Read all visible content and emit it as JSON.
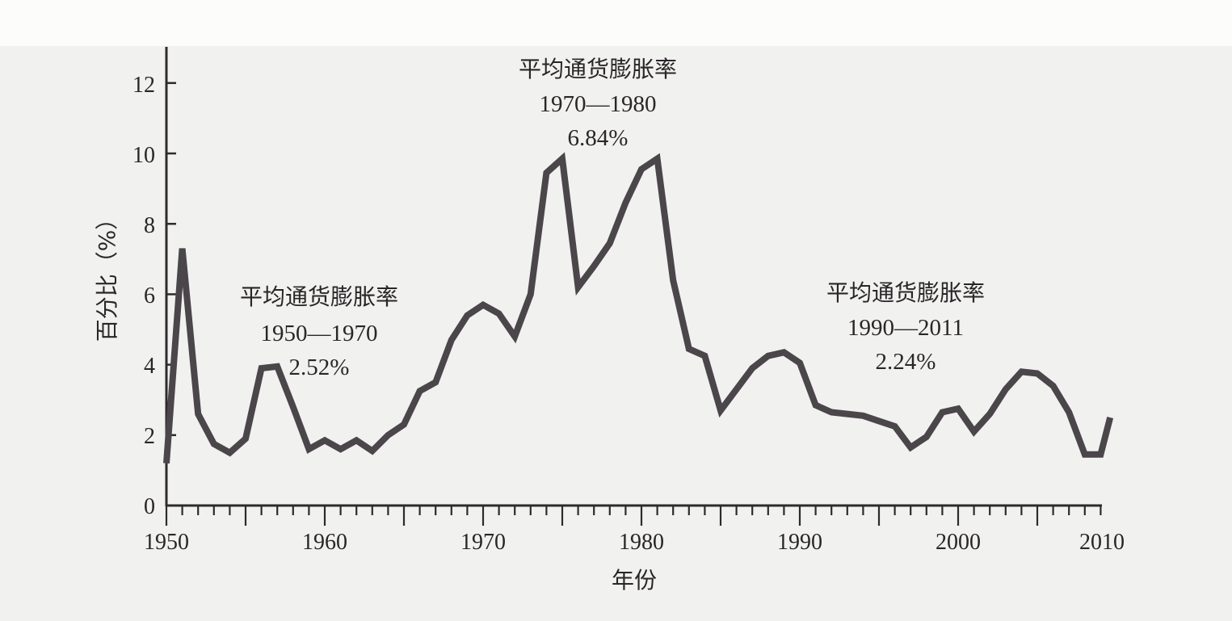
{
  "chart_data": {
    "type": "line",
    "title": "",
    "xlabel": "年份",
    "ylabel": "百分比（%）",
    "xlim": [
      1950,
      2009
    ],
    "ylim": [
      0,
      13
    ],
    "grid": false,
    "x_tick_labels": [
      "1950",
      "1960",
      "1970",
      "1980",
      "1990",
      "2000",
      "2010"
    ],
    "y_tick_labels": [
      "0",
      "2",
      "4",
      "6",
      "8",
      "10",
      "12"
    ],
    "series": [
      {
        "name": "通货膨胀率",
        "color": "#4a464a",
        "x": [
          1950,
          1951,
          1952,
          1953,
          1954,
          1955,
          1956,
          1957,
          1958,
          1959,
          1960,
          1961,
          1962,
          1963,
          1964,
          1965,
          1966,
          1967,
          1968,
          1969,
          1970,
          1971,
          1972,
          1973,
          1974,
          1975,
          1976,
          1977,
          1978,
          1979,
          1980,
          1981,
          1982,
          1983,
          1984,
          1985,
          1986,
          1987,
          1988,
          1989,
          1990,
          1991,
          1992,
          1993,
          1994,
          1995,
          1996,
          1997,
          1998,
          1999,
          2000,
          2001,
          2002,
          2003,
          2004,
          2005,
          2006,
          2007,
          2008,
          2009,
          2009.6
        ],
        "values": [
          1.2,
          7.3,
          2.6,
          1.75,
          1.5,
          1.9,
          3.9,
          3.95,
          2.8,
          1.6,
          1.85,
          1.6,
          1.85,
          1.55,
          2.0,
          2.3,
          3.25,
          3.5,
          4.7,
          5.4,
          5.7,
          5.45,
          4.8,
          6.0,
          9.45,
          9.85,
          6.2,
          6.8,
          7.45,
          8.6,
          9.55,
          9.85,
          6.4,
          4.45,
          4.25,
          2.7,
          3.3,
          3.9,
          4.25,
          4.35,
          4.05,
          2.85,
          2.65,
          2.6,
          2.55,
          2.4,
          2.25,
          1.65,
          1.95,
          2.65,
          2.75,
          2.1,
          2.6,
          3.3,
          3.8,
          3.75,
          3.4,
          2.65,
          1.45,
          1.45,
          2.5
        ]
      }
    ],
    "annotations": [
      {
        "title": "平均通货膨胀率",
        "period": "1950—1970",
        "value": "2.52%"
      },
      {
        "title": "平均通货膨胀率",
        "period": "1970—1980",
        "value": "6.84%"
      },
      {
        "title": "平均通货膨胀率",
        "period": "1990—2011",
        "value": "2.24%"
      }
    ]
  },
  "labels": {
    "xlabel": "年份",
    "ylabel": "百分比（%）",
    "x_ticks": [
      "1950",
      "1960",
      "1970",
      "1980",
      "1990",
      "2000",
      "2010"
    ],
    "y_ticks": [
      "0",
      "2",
      "4",
      "6",
      "8",
      "10",
      "12"
    ],
    "anno1": {
      "title": "平均通货膨胀率",
      "period": "1950—1970",
      "value": "2.52%"
    },
    "anno2": {
      "title": "平均通货膨胀率",
      "period": "1970—1980",
      "value": "6.84%"
    },
    "anno3": {
      "title": "平均通货膨胀率",
      "period": "1990—2011",
      "value": "2.24%"
    }
  }
}
